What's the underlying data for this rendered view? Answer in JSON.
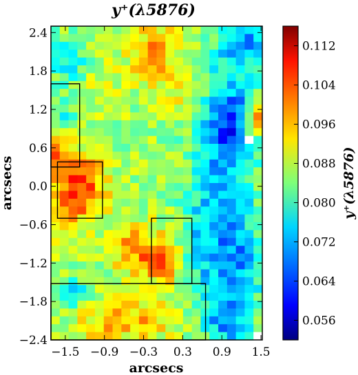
{
  "chart_data": {
    "type": "heatmap",
    "title": "y⁺(λ5876)",
    "xlabel": "arcsecs",
    "ylabel": "arcsecs",
    "colorbar_label": "y⁺(λ5876)",
    "colormap": "jet",
    "xlim": [
      -1.72,
      1.52
    ],
    "ylim": [
      -2.4,
      2.5
    ],
    "clim": [
      0.052,
      0.116
    ],
    "x_ticks": [
      "−1.5",
      "−0.9",
      "−0.3",
      "0.3",
      "0.9",
      "1.5"
    ],
    "x_tick_values": [
      -1.5,
      -0.9,
      -0.3,
      0.3,
      0.9,
      1.5
    ],
    "y_ticks": [
      "2.4",
      "1.8",
      "1.2",
      "0.6",
      "0.0",
      "−0.6",
      "−1.2",
      "−1.8",
      "−2.4"
    ],
    "y_tick_values": [
      2.4,
      1.8,
      1.2,
      0.6,
      0.0,
      -0.6,
      -1.2,
      -1.8,
      -2.4
    ],
    "colorbar_ticks": [
      "0.112",
      "0.104",
      "0.096",
      "0.088",
      "0.080",
      "0.072",
      "0.064",
      "0.056"
    ],
    "colorbar_tick_values": [
      0.112,
      0.104,
      0.096,
      0.088,
      0.08,
      0.072,
      0.064,
      0.056
    ],
    "grid": false,
    "regions": [
      {
        "x0": -1.72,
        "x1": -1.28,
        "y0": 0.3,
        "y1": 1.6
      },
      {
        "x0": -1.62,
        "x1": -0.93,
        "y0": -0.5,
        "y1": 0.38
      },
      {
        "x0": -0.18,
        "x1": 0.44,
        "y0": -1.52,
        "y1": -0.5
      },
      {
        "x0": -1.72,
        "x1": 0.65,
        "y0": -2.4,
        "y1": -1.52
      }
    ],
    "nx": 24,
    "ny": 40,
    "base_value": 0.086,
    "features": [
      {
        "type": "spot",
        "x": -1.28,
        "y": -0.03,
        "sx": 0.28,
        "sy": 0.35,
        "amp": 0.02
      },
      {
        "type": "spot",
        "x": -0.45,
        "y": -0.95,
        "sx": 0.25,
        "sy": 0.28,
        "amp": 0.013
      },
      {
        "type": "spot",
        "x": 0.0,
        "y": -1.2,
        "sx": 0.2,
        "sy": 0.25,
        "amp": 0.014
      },
      {
        "type": "spot",
        "x": -1.62,
        "y": 0.62,
        "sx": 0.15,
        "sy": 0.25,
        "amp": 0.013
      },
      {
        "type": "spot",
        "x": -1.6,
        "y": -0.55,
        "sx": 0.15,
        "sy": 0.2,
        "amp": 0.006
      },
      {
        "type": "spot",
        "x": -0.15,
        "y": 2.1,
        "sx": 0.3,
        "sy": 0.3,
        "amp": 0.012
      },
      {
        "type": "spot",
        "x": 1.42,
        "y": 1.05,
        "sx": 0.1,
        "sy": 0.15,
        "amp": 0.028
      },
      {
        "type": "spot",
        "x": -0.9,
        "y": -2.15,
        "sx": 0.35,
        "sy": 0.25,
        "amp": 0.008
      },
      {
        "type": "spot",
        "x": -0.2,
        "y": -2.05,
        "sx": 0.35,
        "sy": 0.25,
        "amp": 0.008
      },
      {
        "type": "spot",
        "x": -1.0,
        "y": 1.55,
        "sx": 0.25,
        "sy": 0.2,
        "amp": 0.005
      },
      {
        "type": "spot",
        "x": 0.25,
        "y": 1.45,
        "sx": 0.3,
        "sy": 0.3,
        "amp": 0.005
      },
      {
        "type": "spot",
        "x": -1.45,
        "y": 1.95,
        "sx": 0.2,
        "sy": 0.25,
        "amp": -0.01
      },
      {
        "type": "spot",
        "x": -1.55,
        "y": 1.1,
        "sx": 0.2,
        "sy": 0.25,
        "amp": -0.008
      },
      {
        "type": "spot",
        "x": -1.4,
        "y": -1.65,
        "sx": 0.2,
        "sy": 0.15,
        "amp": -0.012
      },
      {
        "type": "spot",
        "x": 0.9,
        "y": 0.0,
        "sx": 0.35,
        "sy": 1.5,
        "amp": -0.012
      },
      {
        "type": "spot",
        "x": 1.05,
        "y": 1.0,
        "sx": 0.25,
        "sy": 0.45,
        "amp": -0.014
      },
      {
        "type": "spot",
        "x": 1.15,
        "y": -1.25,
        "sx": 0.3,
        "sy": 0.6,
        "amp": -0.01
      },
      {
        "type": "spot",
        "x": 1.25,
        "y": 2.25,
        "sx": 0.25,
        "sy": 0.3,
        "amp": -0.014
      },
      {
        "type": "spot",
        "x": 0.95,
        "y": -2.1,
        "sx": 0.2,
        "sy": 0.25,
        "amp": -0.012
      },
      {
        "type": "spot",
        "x": 0.55,
        "y": -0.9,
        "sx": 0.15,
        "sy": 0.5,
        "amp": -0.006
      }
    ],
    "blank_cells": [
      [
        1.33,
        0.68
      ],
      [
        1.48,
        -2.28
      ]
    ]
  }
}
